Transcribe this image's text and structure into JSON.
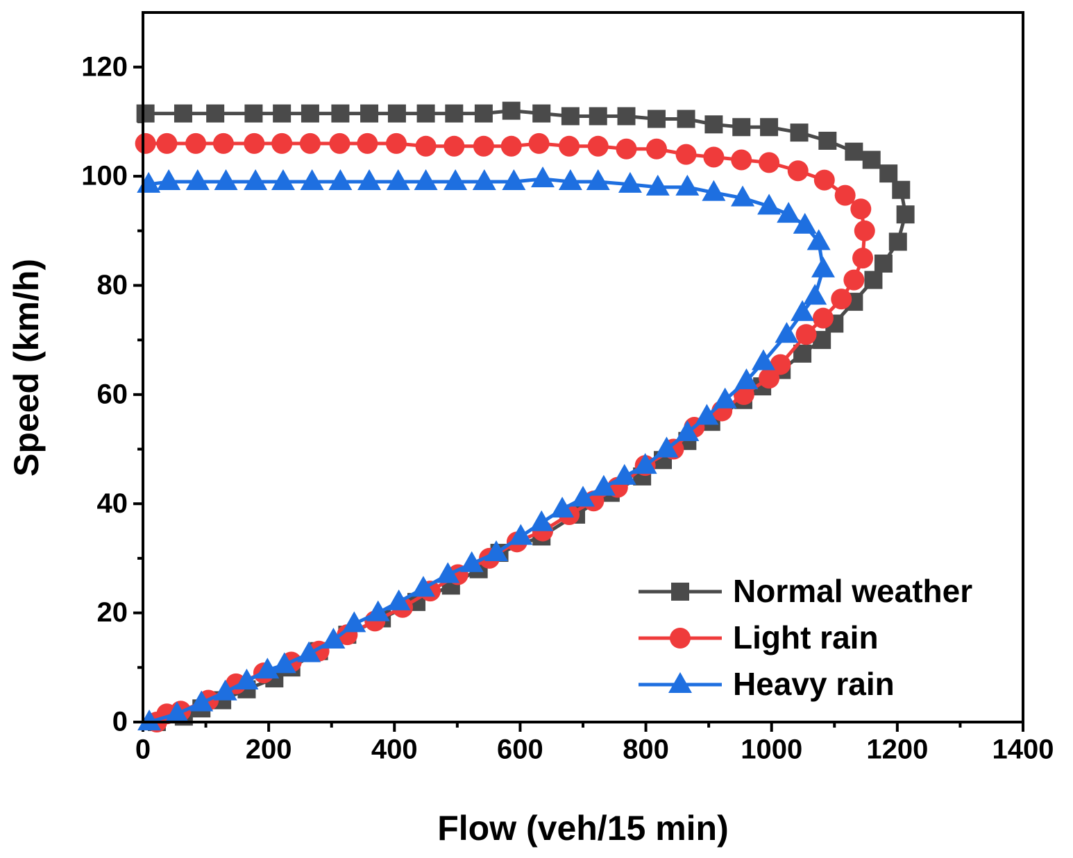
{
  "chart_data": {
    "type": "line",
    "x_label": "Flow (veh/15 min)",
    "y_label": "Speed (km/h)",
    "xlim": [
      0,
      1400
    ],
    "xticks": [
      0,
      200,
      400,
      600,
      800,
      1000,
      1200,
      1400
    ],
    "ylim": [
      0,
      130
    ],
    "yticks": [
      0,
      20,
      40,
      60,
      80,
      100,
      120
    ],
    "minor_ticks": true,
    "grid": false,
    "legend": "lower right",
    "series": [
      {
        "name": "Normal weather",
        "color": "#4a4a4a",
        "marker": "square",
        "x": [
          4,
          64,
          115,
          176,
          221,
          266,
          314,
          360,
          404,
          450,
          495,
          542,
          586,
          634,
          680,
          724,
          769,
          817,
          864,
          908,
          952,
          996,
          1044,
          1089,
          1131,
          1159,
          1186,
          1206,
          1213,
          1201,
          1178,
          1162,
          1131,
          1100,
          1080,
          1049,
          1016,
          985,
          955,
          904,
          866,
          827,
          794,
          744,
          689,
          634,
          567,
          534,
          490,
          435,
          380,
          325,
          280,
          236,
          209,
          165,
          126,
          93,
          65,
          22
        ],
        "values": [
          111.5,
          111.5,
          111.5,
          111.5,
          111.5,
          111.5,
          111.5,
          111.5,
          111.5,
          111.5,
          111.5,
          111.5,
          112,
          111.5,
          111,
          111,
          111,
          110.5,
          110.5,
          109.5,
          109,
          109,
          108,
          106.5,
          104.5,
          103,
          100.5,
          97.5,
          93,
          88,
          84,
          81,
          77,
          73,
          70,
          67.5,
          64.5,
          61.5,
          59,
          55,
          51.5,
          48,
          45,
          42,
          38,
          34,
          31,
          28,
          25,
          22,
          19,
          16,
          13,
          10,
          8,
          6,
          4,
          2.5,
          1,
          0
        ]
      },
      {
        "name": "Light rain",
        "color": "#ef3b3b",
        "marker": "circle",
        "x": [
          4,
          38,
          84,
          128,
          177,
          221,
          266,
          313,
          357,
          403,
          450,
          495,
          542,
          586,
          630,
          678,
          724,
          769,
          817,
          864,
          908,
          952,
          996,
          1042,
          1084,
          1117,
          1142,
          1148,
          1145,
          1131,
          1111,
          1082,
          1055,
          1014,
          996,
          956,
          921,
          877,
          844,
          799,
          755,
          717,
          678,
          636,
          595,
          551,
          501,
          457,
          413,
          369,
          325,
          280,
          236,
          192,
          148,
          104,
          60,
          38,
          22
        ],
        "values": [
          106,
          106,
          106,
          106,
          106,
          106,
          106,
          106,
          106,
          106,
          105.5,
          105.5,
          105.5,
          105.5,
          106,
          105.5,
          105.5,
          105,
          105,
          104,
          103.5,
          103,
          102.5,
          101,
          99.3,
          96.5,
          94,
          90,
          85,
          81,
          77.5,
          74,
          71,
          65.5,
          63,
          60,
          57,
          54,
          50,
          47,
          43,
          40.5,
          38,
          35,
          33,
          30,
          27,
          24,
          21,
          18.5,
          16,
          13,
          11,
          9,
          7,
          4,
          2,
          1.5,
          0
        ]
      },
      {
        "name": "Heavy rain",
        "color": "#1e6fe0",
        "marker": "triangle",
        "x": [
          9,
          41,
          87,
          132,
          179,
          223,
          269,
          314,
          360,
          406,
          450,
          497,
          543,
          590,
          636,
          680,
          724,
          775,
          819,
          866,
          908,
          954,
          996,
          1027,
          1053,
          1075,
          1082,
          1069,
          1049,
          1024,
          987,
          960,
          926,
          897,
          866,
          833,
          799,
          766,
          733,
          700,
          667,
          634,
          601,
          562,
          523,
          485,
          446,
          407,
          374,
          336,
          303,
          264,
          225,
          198,
          165,
          131,
          93,
          54,
          10
        ],
        "values": [
          98.5,
          99,
          99,
          99,
          99,
          99,
          99,
          99,
          99,
          99,
          99,
          99,
          99,
          99,
          99.5,
          99,
          99,
          98.5,
          98,
          98,
          97,
          96,
          94.5,
          93,
          91,
          88,
          83,
          78,
          75,
          71,
          66,
          62.5,
          59,
          56,
          53,
          50,
          47,
          45,
          43,
          41,
          39,
          36.5,
          34,
          31,
          29,
          27,
          24.5,
          22,
          20,
          18,
          15,
          12.5,
          10.5,
          9.5,
          7.5,
          5.5,
          3.5,
          1.5,
          0
        ]
      }
    ]
  }
}
